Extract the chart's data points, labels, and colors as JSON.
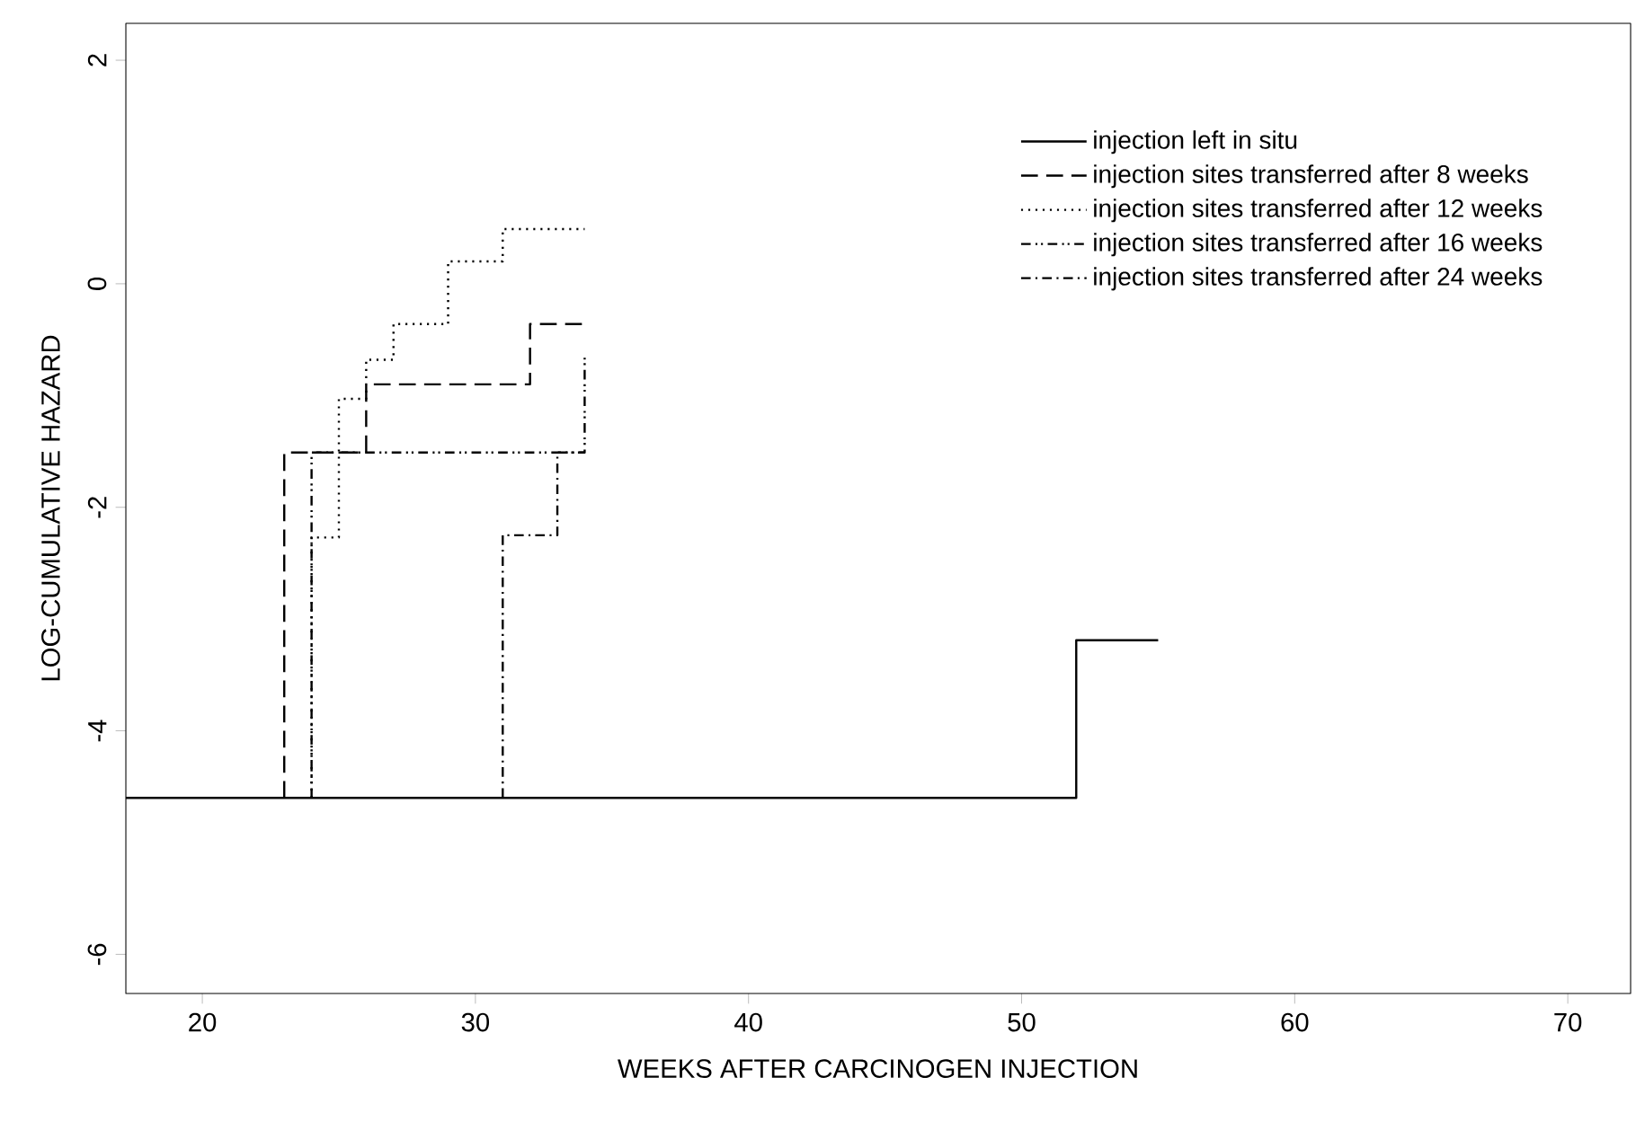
{
  "chart_data": {
    "type": "step",
    "xlabel": "WEEKS AFTER CARCINOGEN INJECTION",
    "ylabel": "LOG-CUMULATIVE HAZARD",
    "xlim": [
      17.2,
      72.3
    ],
    "ylim": [
      -6.35,
      2.33
    ],
    "xticks": [
      20,
      30,
      40,
      50,
      60,
      70
    ],
    "yticks": [
      -6,
      -4,
      -2,
      0,
      2
    ],
    "legend": "top right",
    "grid": false,
    "series": [
      {
        "name": "injection left in situ",
        "color": "#000000",
        "line_style": "solid",
        "x": [
          17.2,
          52,
          55
        ],
        "values": [
          -4.6,
          -3.19,
          -3.19
        ]
      },
      {
        "name": "injection sites transferred after 8 weeks",
        "color": "#000000",
        "line_style": "dashed",
        "x": [
          23,
          23,
          26,
          32,
          34
        ],
        "values": [
          -4.6,
          -1.51,
          -0.9,
          -0.36,
          -0.36
        ]
      },
      {
        "name": "injection sites transferred after 12 weeks",
        "color": "#000000",
        "line_style": "dotted",
        "x": [
          24,
          24,
          25,
          26,
          27,
          29,
          31,
          34
        ],
        "values": [
          -4.6,
          -2.27,
          -1.03,
          -0.68,
          -0.36,
          0.2,
          0.49,
          0.49
        ]
      },
      {
        "name": "injection sites transferred after 16 weeks",
        "color": "#000000",
        "line_style": "dashdotdot",
        "x": [
          24,
          24,
          34,
          34
        ],
        "values": [
          -4.6,
          -1.51,
          -0.66,
          -0.66
        ]
      },
      {
        "name": "injection sites transferred after 24 weeks",
        "color": "#000000",
        "line_style": "dashdot",
        "x": [
          31,
          31,
          33,
          34
        ],
        "values": [
          -4.6,
          -2.25,
          -1.51,
          -1.51
        ]
      }
    ]
  }
}
